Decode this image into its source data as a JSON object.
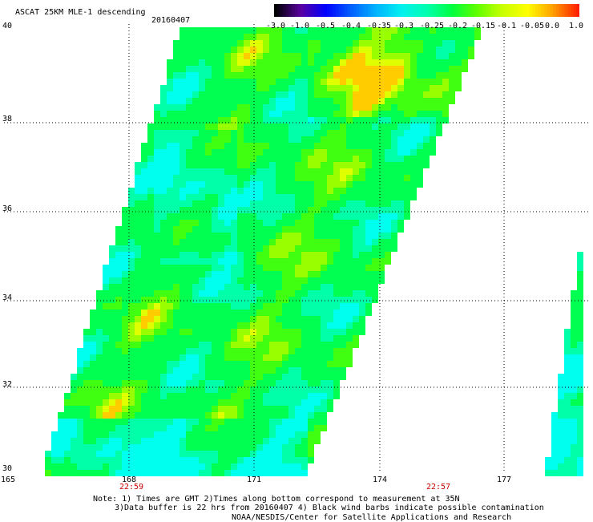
{
  "title": "ASCAT 25KM MLE-1 descending",
  "date": "20160407",
  "colorbar": {
    "labels": [
      "-3.0",
      "-1.0",
      "-0.5",
      "-0.4",
      "-0.35",
      "-0.3",
      "-0.25",
      "-0.2",
      "-0.15",
      "-0.1",
      "-0.05",
      "0.0",
      "1.0"
    ],
    "colors": [
      "#000000",
      "#5a00a0",
      "#0000ff",
      "#0060ff",
      "#00b4ff",
      "#00f0f0",
      "#00ffb0",
      "#00ff40",
      "#60ff00",
      "#c8ff00",
      "#ffff00",
      "#ffa000",
      "#ff2000"
    ]
  },
  "axes": {
    "lat_labels": [
      "40",
      "38",
      "36",
      "34",
      "32",
      "30"
    ],
    "lon_labels": [
      "165",
      "168",
      "171",
      "174",
      "177"
    ]
  },
  "times": [
    "22:59",
    "22:57"
  ],
  "notes": [
    "Note: 1) Times are GMT 2)Times along bottom correspond to measurement at 35N",
    "3)Data buffer is 22 hrs from 20160407 4) Black wind barbs indicate possible contamination",
    "NOAA/NESDIS/Center for Satellite Applications and Research"
  ]
}
